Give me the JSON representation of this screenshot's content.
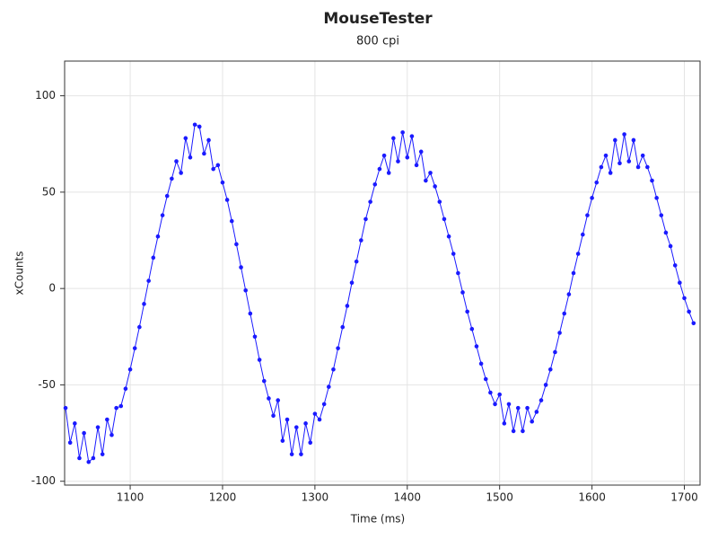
{
  "chart_data": {
    "type": "line",
    "title": "MouseTester",
    "subtitle": "800 cpi",
    "x_label": "Time (ms)",
    "y_label": "xCounts",
    "x": [
      1030,
      1035,
      1040,
      1045,
      1050,
      1055,
      1060,
      1065,
      1070,
      1075,
      1080,
      1085,
      1090,
      1095,
      1100,
      1105,
      1110,
      1115,
      1120,
      1125,
      1130,
      1135,
      1140,
      1145,
      1150,
      1155,
      1160,
      1165,
      1170,
      1175,
      1180,
      1185,
      1190,
      1195,
      1200,
      1205,
      1210,
      1215,
      1220,
      1225,
      1230,
      1235,
      1240,
      1245,
      1250,
      1255,
      1260,
      1265,
      1270,
      1275,
      1280,
      1285,
      1290,
      1295,
      1300,
      1305,
      1310,
      1315,
      1320,
      1325,
      1330,
      1335,
      1340,
      1345,
      1350,
      1355,
      1360,
      1365,
      1370,
      1375,
      1380,
      1385,
      1390,
      1395,
      1400,
      1405,
      1410,
      1415,
      1420,
      1425,
      1430,
      1435,
      1440,
      1445,
      1450,
      1455,
      1460,
      1465,
      1470,
      1475,
      1480,
      1485,
      1490,
      1495,
      1500,
      1505,
      1510,
      1515,
      1520,
      1525,
      1530,
      1535,
      1540,
      1545,
      1550,
      1555,
      1560,
      1565,
      1570,
      1575,
      1580,
      1585,
      1590,
      1595,
      1600,
      1605,
      1610,
      1615,
      1620,
      1625,
      1630,
      1635,
      1640,
      1645,
      1650,
      1655,
      1660,
      1665,
      1670,
      1675,
      1680,
      1685,
      1690,
      1695,
      1700,
      1705,
      1710
    ],
    "series": [
      {
        "name": "xCounts",
        "color": "#1a1aff",
        "values": [
          -62,
          -80,
          -70,
          -88,
          -75,
          -90,
          -88,
          -72,
          -86,
          -68,
          -76,
          -62,
          -61,
          -52,
          -42,
          -31,
          -20,
          -8,
          4,
          16,
          27,
          38,
          48,
          57,
          66,
          60,
          78,
          68,
          85,
          84,
          70,
          77,
          62,
          64,
          55,
          46,
          35,
          23,
          11,
          -1,
          -13,
          -25,
          -37,
          -48,
          -57,
          -66,
          -58,
          -79,
          -68,
          -86,
          -72,
          -86,
          -70,
          -80,
          -65,
          -68,
          -60,
          -51,
          -42,
          -31,
          -20,
          -9,
          3,
          14,
          25,
          36,
          45,
          54,
          62,
          69,
          60,
          78,
          66,
          81,
          68,
          79,
          64,
          71,
          56,
          60,
          53,
          45,
          36,
          27,
          18,
          8,
          -2,
          -12,
          -21,
          -30,
          -39,
          -47,
          -54,
          -60,
          -55,
          -70,
          -60,
          -74,
          -62,
          -74,
          -62,
          -69,
          -64,
          -58,
          -50,
          -42,
          -33,
          -23,
          -13,
          -3,
          8,
          18,
          28,
          38,
          47,
          55,
          63,
          69,
          60,
          77,
          65,
          80,
          66,
          77,
          63,
          69,
          63,
          56,
          47,
          38,
          29,
          22,
          12,
          3,
          -5,
          -12,
          -18
        ]
      }
    ],
    "xlim": [
      1029,
      1717
    ],
    "ylim": [
      -102,
      118
    ],
    "xticks": [
      1100,
      1200,
      1300,
      1400,
      1500,
      1600,
      1700
    ],
    "yticks": [
      -100,
      -50,
      0,
      50,
      100
    ],
    "grid": true
  }
}
